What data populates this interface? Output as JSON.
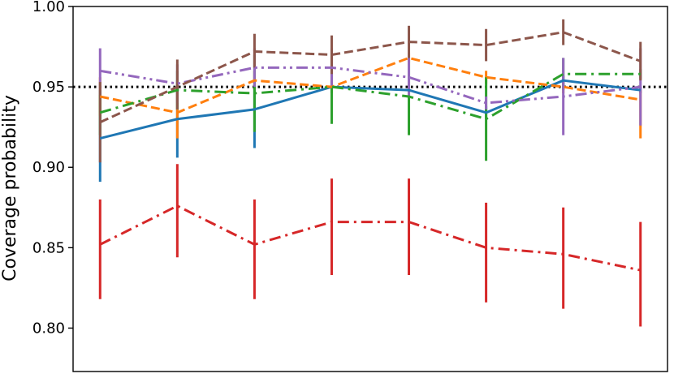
{
  "chart_data": {
    "type": "line",
    "title": "",
    "xlabel": "",
    "ylabel": "Coverage probability",
    "ylim": [
      0.773,
      1.0
    ],
    "yticks": [
      "0.80",
      "0.85",
      "0.90",
      "0.95",
      "1.00"
    ],
    "reference_line": {
      "y": 0.95,
      "style": "dotted",
      "color": "#000000"
    },
    "grid": false,
    "legend": "none",
    "x": [
      1,
      2,
      3,
      4,
      5,
      6,
      7,
      8
    ],
    "series": [
      {
        "color": "#1f77b4",
        "dash": "solid",
        "values": [
          0.918,
          0.93,
          0.936,
          0.95,
          0.948,
          0.934,
          0.954,
          0.948
        ],
        "err_low": [
          0.891,
          0.906,
          0.912,
          0.946,
          0.946,
          0.93,
          0.951,
          0.946
        ],
        "err_high": [
          0.945,
          0.954,
          0.96,
          0.954,
          0.95,
          0.938,
          0.957,
          0.95
        ]
      },
      {
        "color": "#ff7f0e",
        "dash": "dashed",
        "values": [
          0.944,
          0.934,
          0.954,
          0.95,
          0.968,
          0.956,
          0.95,
          0.942
        ],
        "err_low": [
          0.932,
          0.918,
          0.948,
          0.946,
          0.965,
          0.952,
          0.946,
          0.918
        ],
        "err_high": [
          0.956,
          0.95,
          0.96,
          0.954,
          0.971,
          0.96,
          0.954,
          0.948
        ]
      },
      {
        "color": "#2ca02c",
        "dash": "dashdot",
        "values": [
          0.934,
          0.948,
          0.946,
          0.95,
          0.944,
          0.93,
          0.958,
          0.958
        ],
        "err_low": [
          0.92,
          0.936,
          0.922,
          0.927,
          0.92,
          0.904,
          0.948,
          0.955
        ],
        "err_high": [
          0.948,
          0.96,
          0.97,
          0.973,
          0.968,
          0.956,
          0.968,
          0.961
        ]
      },
      {
        "color": "#d62728",
        "dash": "dashdot",
        "values": [
          0.852,
          0.876,
          0.852,
          0.866,
          0.866,
          0.85,
          0.846,
          0.836
        ],
        "err_low": [
          0.818,
          0.844,
          0.818,
          0.833,
          0.833,
          0.816,
          0.812,
          0.801
        ],
        "err_high": [
          0.88,
          0.902,
          0.88,
          0.893,
          0.893,
          0.878,
          0.875,
          0.866
        ]
      },
      {
        "color": "#9467bd",
        "dash": "dashdotdot",
        "values": [
          0.96,
          0.952,
          0.962,
          0.962,
          0.956,
          0.94,
          0.944,
          0.95
        ],
        "err_low": [
          0.945,
          0.94,
          0.95,
          0.95,
          0.944,
          0.936,
          0.92,
          0.926
        ],
        "err_high": [
          0.974,
          0.964,
          0.974,
          0.974,
          0.968,
          0.944,
          0.968,
          0.974
        ]
      },
      {
        "color": "#8c564b",
        "dash": "dashed",
        "values": [
          0.928,
          0.95,
          0.972,
          0.97,
          0.978,
          0.976,
          0.984,
          0.966
        ],
        "err_low": [
          0.903,
          0.936,
          0.962,
          0.958,
          0.968,
          0.966,
          0.976,
          0.954
        ],
        "err_high": [
          0.953,
          0.967,
          0.983,
          0.982,
          0.988,
          0.986,
          0.992,
          0.978
        ]
      }
    ]
  }
}
